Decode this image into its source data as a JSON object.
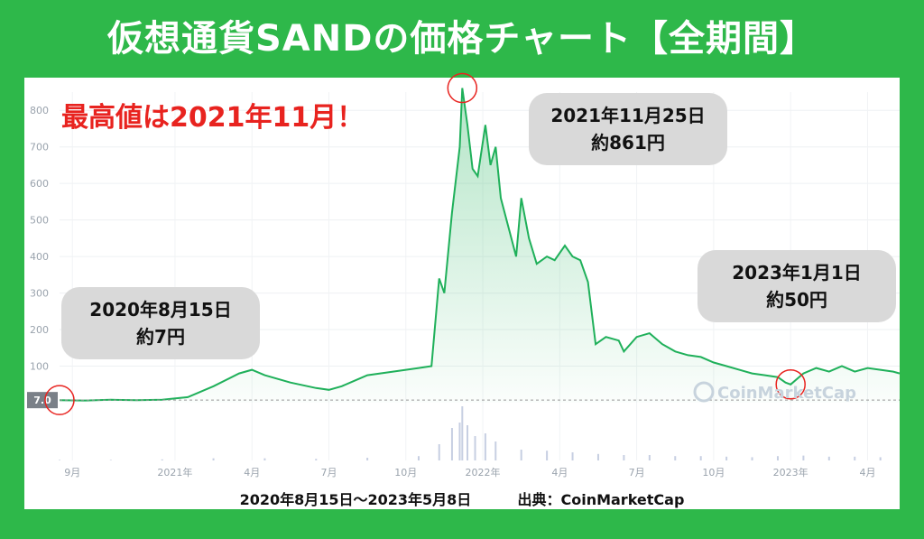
{
  "header": {
    "title": "仮想通貨SANDの価格チャート【全期間】"
  },
  "headline_note": "最高値は2021年11月！",
  "callouts": [
    {
      "date": "2021年11月25日",
      "price": "約861円"
    },
    {
      "date": "2020年8月15日",
      "price": "約7円"
    },
    {
      "date": "2023年1月1日",
      "price": "約50円"
    }
  ],
  "footer": {
    "range": "2020年8月15日〜2023年5月8日",
    "source": "出典：CoinMarketCap"
  },
  "watermark": "CoinMarketCap",
  "colors": {
    "background": "#2eb84a",
    "line": "#1fb05a",
    "highlight": "#e8231f",
    "callout": "#d9d9d9"
  },
  "chart_data": {
    "type": "area",
    "ylim": [
      0,
      850
    ],
    "yticks": [
      100,
      200,
      300,
      400,
      500,
      600,
      700,
      800
    ],
    "baseline_label": "7.0",
    "xticks": [
      {
        "t": 0.5,
        "label": "9月"
      },
      {
        "t": 4.5,
        "label": "2021年"
      },
      {
        "t": 7.5,
        "label": "4月"
      },
      {
        "t": 10.5,
        "label": "7月"
      },
      {
        "t": 13.5,
        "label": "10月"
      },
      {
        "t": 16.5,
        "label": "2022年"
      },
      {
        "t": 19.5,
        "label": "4月"
      },
      {
        "t": 22.5,
        "label": "7月"
      },
      {
        "t": 25.5,
        "label": "10月"
      },
      {
        "t": 28.5,
        "label": "2023年"
      },
      {
        "t": 31.5,
        "label": "4月"
      }
    ],
    "xlim": [
      0,
      32.75
    ],
    "series": [
      {
        "points": [
          [
            0,
            7
          ],
          [
            1,
            6
          ],
          [
            2,
            8
          ],
          [
            3,
            7
          ],
          [
            4,
            8
          ],
          [
            5,
            15
          ],
          [
            6,
            45
          ],
          [
            7,
            80
          ],
          [
            7.5,
            90
          ],
          [
            8,
            75
          ],
          [
            9,
            55
          ],
          [
            10,
            40
          ],
          [
            10.5,
            35
          ],
          [
            11,
            45
          ],
          [
            11.5,
            60
          ],
          [
            12,
            75
          ],
          [
            12.5,
            80
          ],
          [
            13,
            85
          ],
          [
            13.5,
            90
          ],
          [
            14,
            95
          ],
          [
            14.5,
            100
          ],
          [
            14.8,
            340
          ],
          [
            15,
            300
          ],
          [
            15.3,
            520
          ],
          [
            15.6,
            700
          ],
          [
            15.7,
            861
          ],
          [
            15.9,
            760
          ],
          [
            16.1,
            640
          ],
          [
            16.3,
            620
          ],
          [
            16.6,
            760
          ],
          [
            16.8,
            650
          ],
          [
            17,
            700
          ],
          [
            17.2,
            560
          ],
          [
            17.5,
            480
          ],
          [
            17.8,
            400
          ],
          [
            18,
            560
          ],
          [
            18.3,
            450
          ],
          [
            18.6,
            380
          ],
          [
            19,
            400
          ],
          [
            19.3,
            390
          ],
          [
            19.7,
            430
          ],
          [
            20,
            400
          ],
          [
            20.3,
            390
          ],
          [
            20.6,
            330
          ],
          [
            20.9,
            160
          ],
          [
            21.3,
            180
          ],
          [
            21.8,
            170
          ],
          [
            22,
            140
          ],
          [
            22.5,
            180
          ],
          [
            23,
            190
          ],
          [
            23.5,
            160
          ],
          [
            24,
            140
          ],
          [
            24.5,
            130
          ],
          [
            25,
            125
          ],
          [
            25.5,
            110
          ],
          [
            26,
            100
          ],
          [
            26.5,
            90
          ],
          [
            27,
            80
          ],
          [
            27.5,
            75
          ],
          [
            28,
            70
          ],
          [
            28.3,
            55
          ],
          [
            28.5,
            50
          ],
          [
            29,
            80
          ],
          [
            29.5,
            95
          ],
          [
            30,
            85
          ],
          [
            30.5,
            100
          ],
          [
            31,
            85
          ],
          [
            31.5,
            95
          ],
          [
            32,
            90
          ],
          [
            32.5,
            85
          ],
          [
            32.75,
            80
          ]
        ]
      }
    ],
    "volume": [
      [
        0,
        1
      ],
      [
        2,
        1
      ],
      [
        4,
        2
      ],
      [
        6,
        4
      ],
      [
        8,
        4
      ],
      [
        10,
        3
      ],
      [
        12,
        5
      ],
      [
        14,
        8
      ],
      [
        14.8,
        30
      ],
      [
        15.3,
        60
      ],
      [
        15.6,
        70
      ],
      [
        15.7,
        100
      ],
      [
        15.9,
        65
      ],
      [
        16.2,
        45
      ],
      [
        16.6,
        50
      ],
      [
        17,
        35
      ],
      [
        18,
        20
      ],
      [
        19,
        18
      ],
      [
        20,
        15
      ],
      [
        21,
        12
      ],
      [
        22,
        10
      ],
      [
        23,
        10
      ],
      [
        24,
        8
      ],
      [
        25,
        8
      ],
      [
        26,
        7
      ],
      [
        27,
        6
      ],
      [
        28,
        8
      ],
      [
        29,
        9
      ],
      [
        30,
        7
      ],
      [
        31,
        7
      ],
      [
        32,
        6
      ]
    ],
    "markers": [
      {
        "x": 0,
        "y": 7
      },
      {
        "x": 15.7,
        "y": 861
      },
      {
        "x": 28.5,
        "y": 50
      }
    ]
  }
}
